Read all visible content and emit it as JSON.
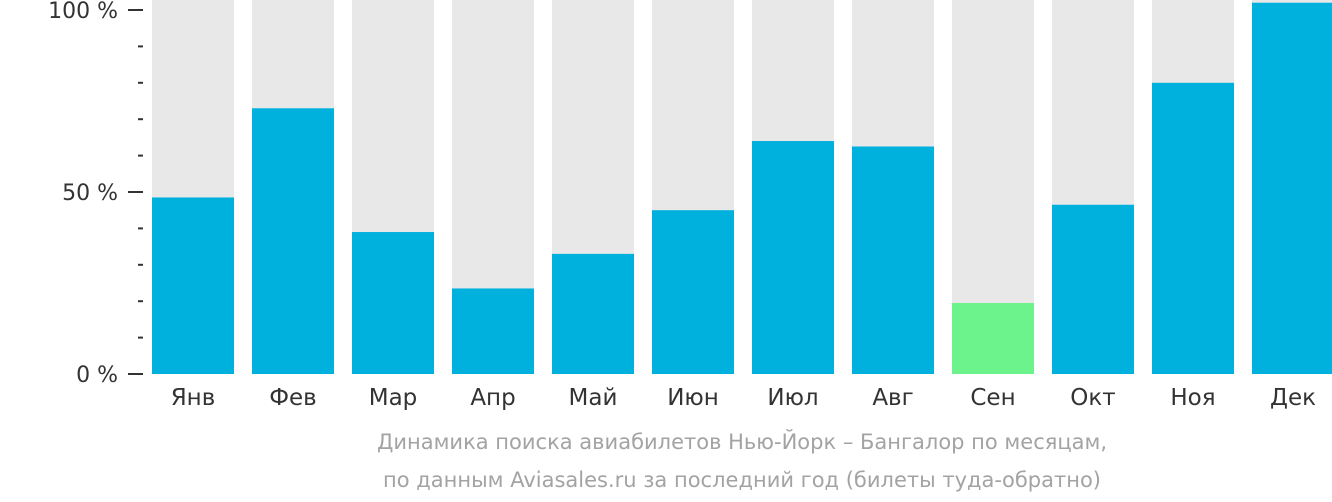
{
  "chart_data": {
    "type": "bar",
    "categories": [
      "Янв",
      "Фев",
      "Мар",
      "Апр",
      "Май",
      "Июн",
      "Июл",
      "Авг",
      "Сен",
      "Окт",
      "Ноя",
      "Дек"
    ],
    "values": [
      48.5,
      73,
      39,
      23.5,
      33,
      45,
      64,
      62.5,
      19.5,
      46.5,
      80,
      102
    ],
    "ylim": [
      0,
      100
    ],
    "yticks": [
      {
        "value": 0,
        "label": "0 %"
      },
      {
        "value": 50,
        "label": "50 %"
      },
      {
        "value": 100,
        "label": "100 %"
      }
    ],
    "minor_ticks": [
      10,
      20,
      30,
      40,
      60,
      70,
      80,
      90
    ],
    "grid": false,
    "legend": "none",
    "colors": {
      "bar": "#00b0dd",
      "highlight": "#6cf38b",
      "background": "#e8e8e8",
      "axis": "#333333",
      "text": "#333333",
      "caption": "#a3a3a3"
    },
    "highlight_category": "Сен"
  },
  "caption": {
    "line1": "Динамика поиска авиабилетов Нью-Йорк – Бангалор по месяцам,",
    "line2": "по данным Aviasales.ru за последний год (билеты туда-обратно)"
  }
}
